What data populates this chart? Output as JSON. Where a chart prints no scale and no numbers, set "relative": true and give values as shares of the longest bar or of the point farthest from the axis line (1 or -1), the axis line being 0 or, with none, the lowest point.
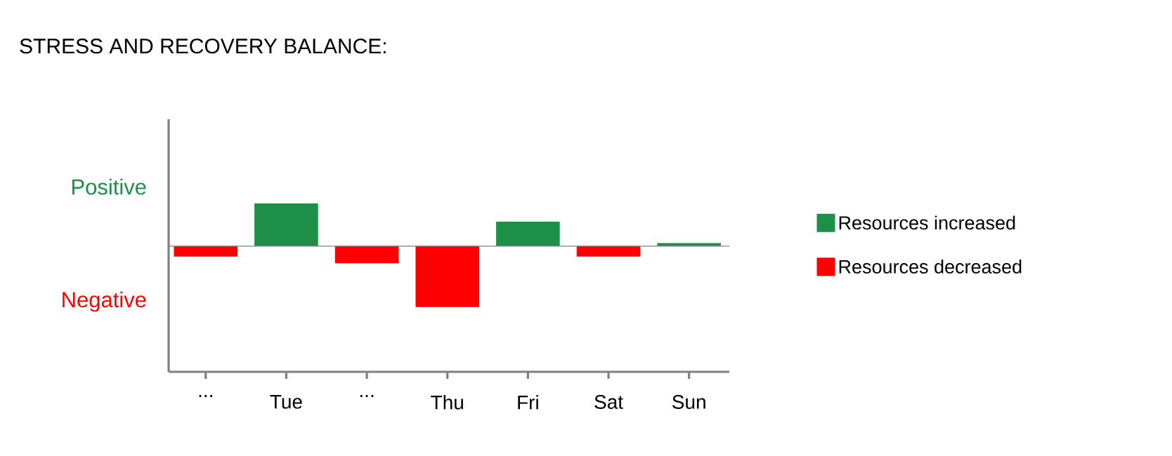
{
  "chart_data": {
    "type": "bar",
    "title": "STRESS AND RECOVERY BALANCE:",
    "relative": true,
    "legend": "right",
    "categories": [
      "...",
      "Tue",
      "...",
      "Thu",
      "Fri",
      "Sat",
      "Sun"
    ],
    "series": [
      {
        "name": "Resources increased",
        "color": "#1d8f46",
        "values": [
          null,
          0.7,
          null,
          null,
          0.4,
          null,
          0.05
        ]
      },
      {
        "name": "Resources decreased",
        "color": "#ff0000",
        "values": [
          -0.17,
          null,
          -0.28,
          -1,
          null,
          -0.17,
          null
        ]
      }
    ],
    "annotations": [
      "Positive",
      "Negative"
    ]
  }
}
